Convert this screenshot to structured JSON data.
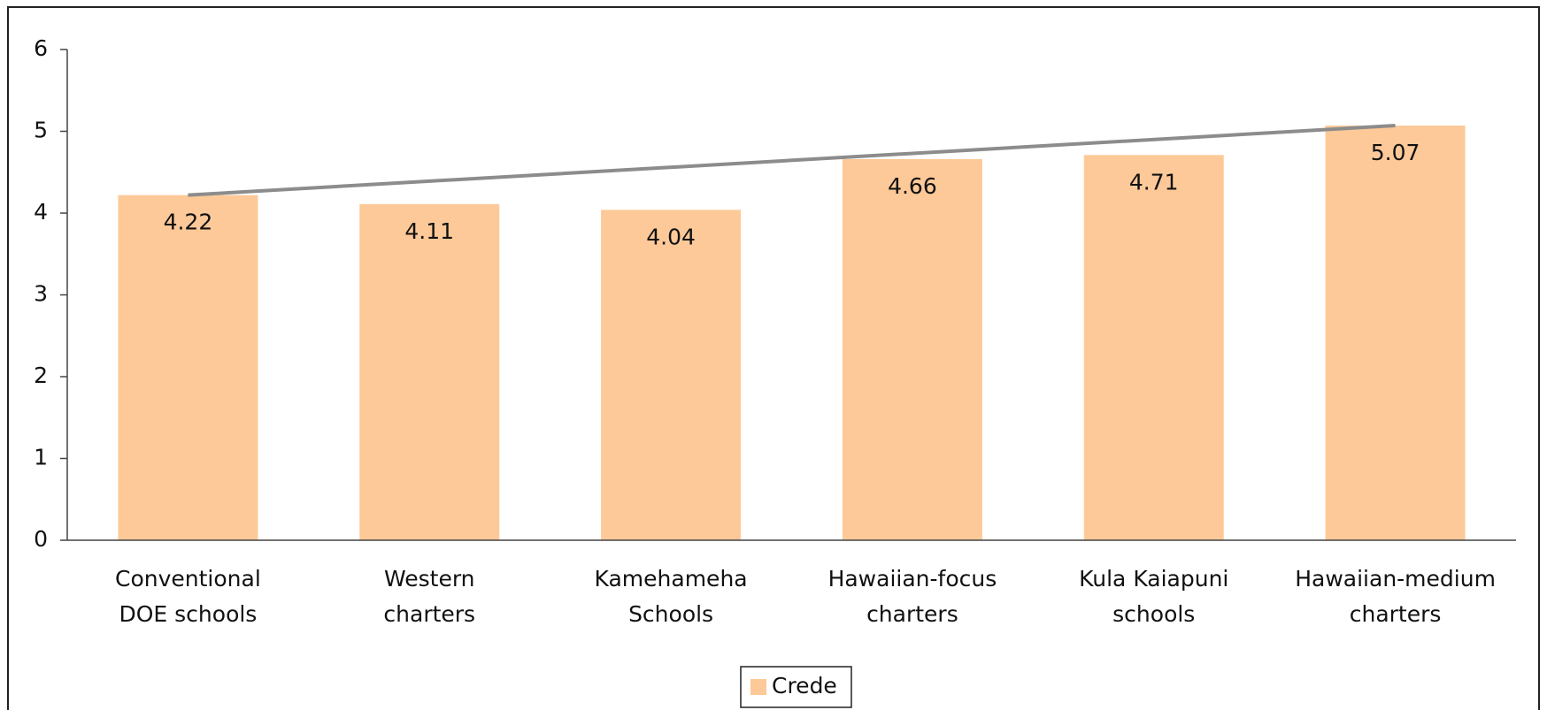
{
  "chart_data": {
    "type": "bar",
    "categories": [
      [
        "Conventional",
        "DOE schools"
      ],
      [
        "Western",
        "charters"
      ],
      [
        "Kamehameha",
        "Schools"
      ],
      [
        "Hawaiian-focus",
        "charters"
      ],
      [
        "Kula Kaiapuni",
        "schools"
      ],
      [
        "Hawaiian-medium",
        "charters"
      ]
    ],
    "series": [
      {
        "name": "Crede",
        "color": "#fdc998",
        "values": [
          4.22,
          4.11,
          4.04,
          4.66,
          4.71,
          5.07
        ]
      }
    ],
    "line": {
      "color": "#8c8c8c",
      "values": [
        4.22,
        5.07
      ]
    },
    "ylim": [
      0,
      6
    ],
    "yticks": [
      0,
      1,
      2,
      3,
      4,
      5,
      6
    ],
    "legend": "bottom"
  }
}
